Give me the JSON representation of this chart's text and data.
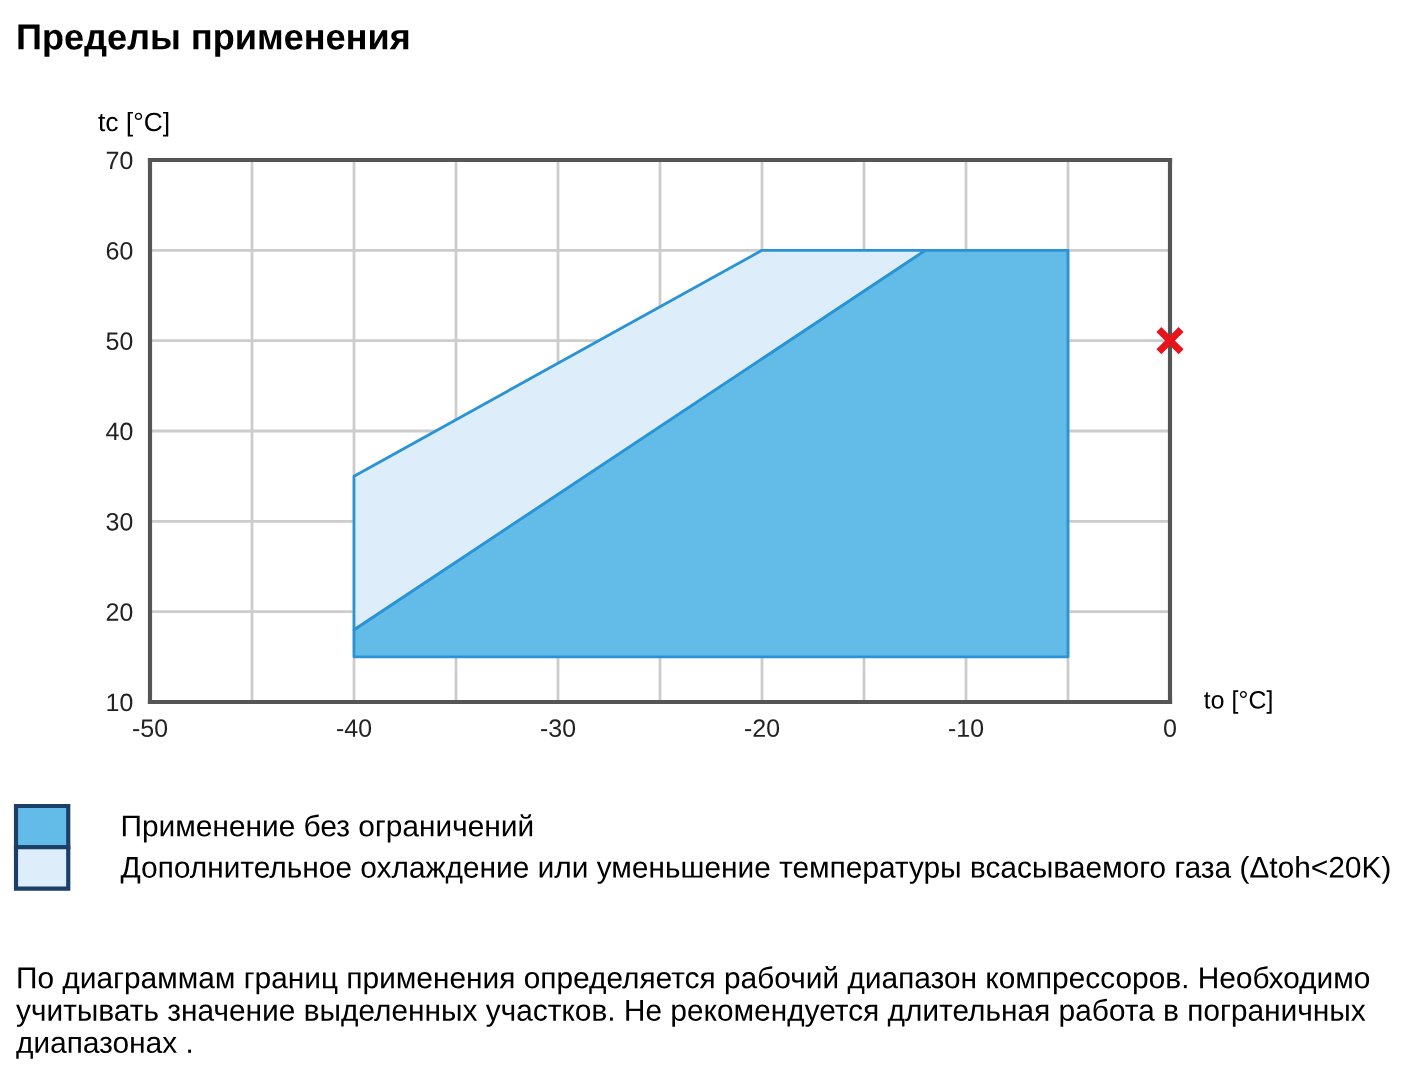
{
  "chart_data": {
    "type": "area",
    "title": "Пределы применения",
    "xlabel": "to [°C]",
    "ylabel": "tc [°C]",
    "xlim": [
      -50,
      0
    ],
    "ylim": [
      10,
      70
    ],
    "xticks": [
      -50,
      {
        "value": -45,
        "label": null
      },
      -40,
      {
        "value": -35,
        "label": null
      },
      -30,
      {
        "value": -25,
        "label": null
      },
      -20,
      {
        "value": -15,
        "label": null
      },
      -10,
      {
        "value": -5,
        "label": null
      },
      0
    ],
    "yticks": [
      10,
      20,
      30,
      40,
      50,
      60,
      70
    ],
    "grid": true,
    "legend": "bottom",
    "series": [
      {
        "name": "Применение без ограничений",
        "color": "#63bbe8",
        "x": [
          -40,
          -40,
          -12,
          -5,
          -5
        ],
        "values": [
          15,
          18,
          60,
          60,
          15
        ]
      },
      {
        "name": "Дополнительное охлаждение или уменьшение температуры всасываемого газа (Δtoh<20K)",
        "color": "#ddeefa",
        "x": [
          -40,
          -40,
          -20,
          -12
        ],
        "values": [
          18,
          35,
          60,
          60
        ]
      },
      {
        "type": "scatter",
        "color": "#e8141b",
        "marker": "cross",
        "x": [
          0
        ],
        "values": [
          50
        ]
      }
    ],
    "annotations": [
      "По диаграммам границ применения определяется рабочий диапазон компрессоров. Необходимо учитывать значение выделенных участков. Не рекомендуется длительная работа в пограничных диапазонах ."
    ]
  }
}
